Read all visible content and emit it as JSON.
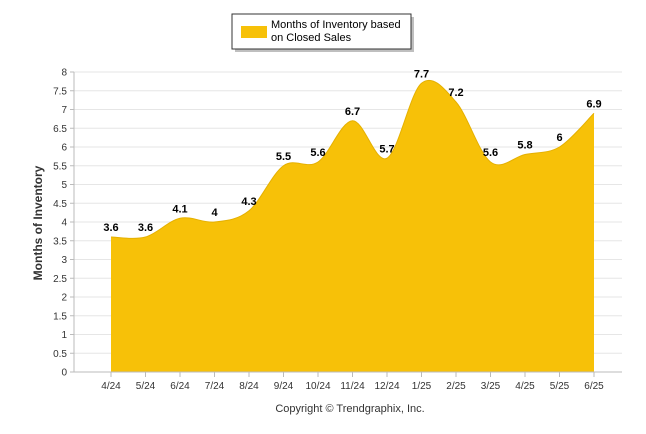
{
  "chart_data": {
    "type": "area",
    "categories": [
      "4/24",
      "5/24",
      "6/24",
      "7/24",
      "8/24",
      "9/24",
      "10/24",
      "11/24",
      "12/24",
      "1/25",
      "2/25",
      "3/25",
      "4/25",
      "5/25",
      "6/25"
    ],
    "series": [
      {
        "name": "Months of Inventory based on Closed Sales",
        "values": [
          3.6,
          3.6,
          4.1,
          4,
          4.3,
          5.5,
          5.6,
          6.7,
          5.7,
          7.7,
          7.2,
          5.6,
          5.8,
          6,
          6.9
        ]
      }
    ],
    "data_labels": [
      "3.6",
      "3.6",
      "4.1",
      "4",
      "4.3",
      "5.5",
      "5.6",
      "6.7",
      "5.7",
      "7.7",
      "7.2",
      "5.6",
      "5.8",
      "6",
      "6.9"
    ],
    "ylabel": "Months of Inventory",
    "xlabel": "",
    "ylim": [
      0,
      8
    ],
    "yticks": [
      "0",
      "0.5",
      "1",
      "1.5",
      "2",
      "2.5",
      "3",
      "3.5",
      "4",
      "4.5",
      "5",
      "5.5",
      "6",
      "6.5",
      "7",
      "7.5",
      "8"
    ],
    "grid": true,
    "legend_position": "top-center",
    "colors": {
      "series": "#F7C108",
      "grid": "#E6E6E6",
      "axis": "#BBBBBB"
    }
  },
  "legend": {
    "line1": "Months of Inventory based",
    "line2": "on Closed Sales"
  },
  "footer": {
    "copyright": "Copyright © Trendgraphix, Inc."
  }
}
